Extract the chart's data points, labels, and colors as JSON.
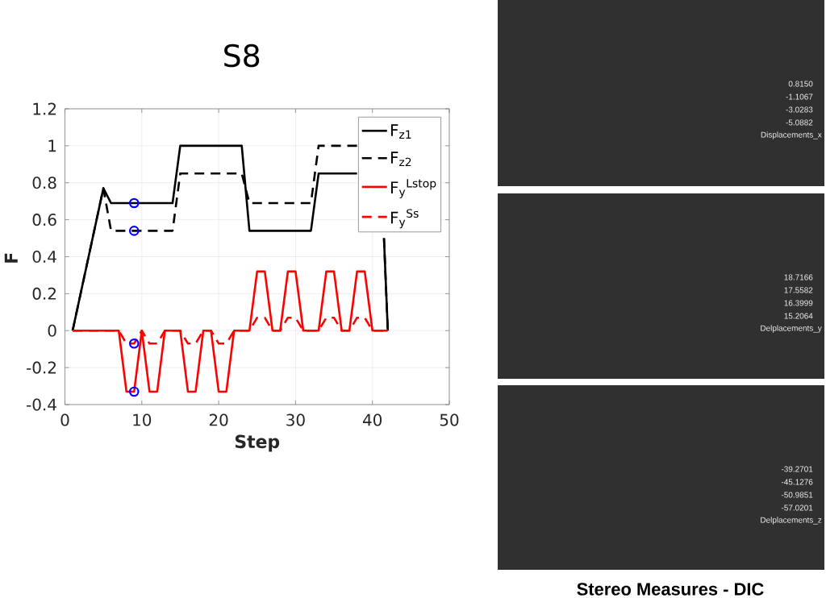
{
  "chart_data": {
    "type": "line",
    "title": "S8",
    "xlabel": "Step",
    "ylabel": "F",
    "xlim": [
      0,
      50
    ],
    "xticks": [
      0,
      10,
      20,
      30,
      40,
      50
    ],
    "ylim": [
      -0.4,
      1.2
    ],
    "yticks": [
      -0.4,
      -0.2,
      0,
      0.2,
      0.4,
      0.6,
      0.8,
      1,
      1.2
    ],
    "grid": true,
    "legend": "top right",
    "series": [
      {
        "name": "F$_{z1}$",
        "color": "#000000",
        "line_style": "solid",
        "x": [
          1,
          5,
          6,
          14,
          15,
          23,
          24,
          32,
          33,
          38,
          41,
          41.5,
          42
        ],
        "values": [
          0,
          0.77,
          0.69,
          0.69,
          1,
          1,
          0.54,
          0.54,
          0.85,
          0.85,
          null,
          0.5,
          0
        ]
      },
      {
        "name": "F$_{z2}$",
        "color": "#000000",
        "line_style": "dashed",
        "x": [
          1,
          5,
          6,
          14,
          15,
          23,
          24,
          32,
          33,
          38,
          41,
          41.5,
          42
        ],
        "values": [
          0,
          0.77,
          0.54,
          0.54,
          0.85,
          0.85,
          0.69,
          0.69,
          1,
          1,
          null,
          0.5,
          0
        ]
      },
      {
        "name": "F$_{y}$$^{Lstop}$",
        "color": "#ff0000",
        "line_style": "solid",
        "x": [
          1,
          7,
          8,
          9,
          10,
          11,
          12,
          13,
          15,
          16,
          17,
          18,
          19,
          20,
          21,
          22,
          24,
          25,
          26,
          27,
          28,
          29,
          30,
          31,
          33,
          34,
          35,
          36,
          37,
          38,
          39,
          40,
          42
        ],
        "values": [
          0,
          0,
          -0.33,
          -0.33,
          0,
          -0.33,
          -0.33,
          0,
          0,
          -0.33,
          -0.33,
          0,
          0,
          -0.33,
          -0.33,
          0,
          0,
          0.32,
          0.32,
          0,
          0,
          0.32,
          0.32,
          0,
          0,
          0.32,
          0.32,
          0,
          0,
          0.32,
          0.32,
          0,
          0
        ]
      },
      {
        "name": "F$_{y}$$^{Ss}$",
        "color": "#ff0000",
        "line_style": "dashed",
        "x": [
          1,
          7,
          8,
          9,
          10,
          11,
          12,
          13,
          15,
          16,
          17,
          18,
          19,
          20,
          21,
          22,
          24,
          25,
          26,
          27,
          28,
          29,
          30,
          31,
          33,
          34,
          35,
          36,
          37,
          38,
          39,
          40,
          42
        ],
        "values": [
          0,
          0,
          -0.07,
          -0.07,
          0,
          -0.07,
          -0.07,
          0,
          0,
          -0.07,
          -0.07,
          0,
          0,
          -0.07,
          -0.07,
          0,
          0,
          0.07,
          0.07,
          0,
          0,
          0.07,
          0.07,
          0,
          0,
          0.07,
          0.07,
          0,
          0,
          0.07,
          0.07,
          0,
          0
        ]
      },
      {
        "type": "scatter",
        "color": "#0000ff",
        "marker": "circle",
        "x": [
          9,
          9,
          9,
          9
        ],
        "values": [
          0.69,
          0.54,
          -0.07,
          -0.33
        ]
      }
    ],
    "annotations": [
      "Stereo Measures - DIC",
      "0.8150",
      "-1.1067",
      "-3.0283",
      "-5.0882",
      "Displacements_x",
      "18.7166",
      "17.5582",
      "16.3999",
      "15.2064",
      "Delplacements_y",
      "-39.2701",
      "-45.1276",
      "-50.9851",
      "-57.0201",
      "Delplacements_z"
    ]
  }
}
